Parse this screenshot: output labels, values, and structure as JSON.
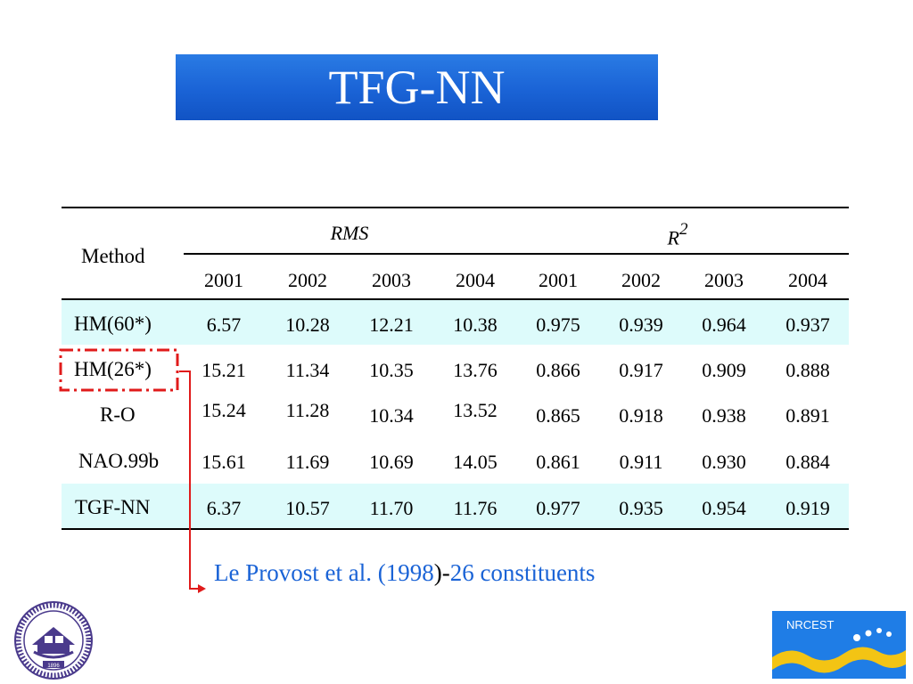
{
  "title": "TFG-NN",
  "table": {
    "method_header": "Method",
    "group_headers": {
      "rms": "RMS",
      "r2_base": "R",
      "r2_sup": "2"
    },
    "years": [
      "2001",
      "2002",
      "2003",
      "2004",
      "2001",
      "2002",
      "2003",
      "2004"
    ],
    "rows": [
      {
        "method": "HM(60*)",
        "values": [
          "6.57",
          "10.28",
          "12.21",
          "10.38",
          "0.975",
          "0.939",
          "0.964",
          "0.937"
        ]
      },
      {
        "method": "HM(26*)",
        "values": [
          "15.21",
          "11.34",
          "10.35",
          "13.76",
          "0.866",
          "0.917",
          "0.909",
          "0.888"
        ]
      },
      {
        "method": "R-O",
        "values": [
          "15.24",
          "11.28",
          "10.34",
          "13.52",
          "0.865",
          "0.918",
          "0.938",
          "0.891"
        ]
      },
      {
        "method": "NAO.99b",
        "values": [
          "15.61",
          "11.69",
          "10.69",
          "14.05",
          "0.861",
          "0.911",
          "0.930",
          "0.884"
        ]
      },
      {
        "method": "TGF-NN",
        "values": [
          "6.37",
          "10.57",
          "11.70",
          "11.76",
          "0.977",
          "0.935",
          "0.954",
          "0.919"
        ]
      }
    ],
    "highlight_color": "#ddfbfb"
  },
  "caption": {
    "part1": "Le Provost et al. (1998",
    "part2": ")-",
    "part3": "26 constituents"
  },
  "logos": {
    "left_text": "1896",
    "right_text": "NRCEST"
  },
  "colors": {
    "title_bar": "#1a63d6",
    "annotation_red": "#e01b1b",
    "caption_blue": "#1a63d6"
  }
}
